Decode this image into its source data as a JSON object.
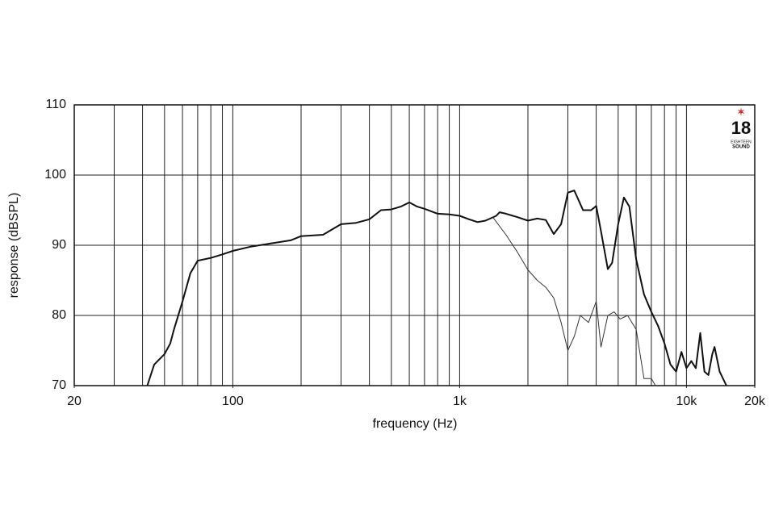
{
  "chart_data": {
    "type": "line",
    "x_label": "frequency (Hz)",
    "y_label": "response (dBSPL)",
    "xscale": "log",
    "xlim": [
      20,
      20000
    ],
    "ylim": [
      70,
      110
    ],
    "xticks": [
      20,
      100,
      {
        "value": 1000,
        "label": "1k"
      },
      {
        "value": 10000,
        "label": "10k"
      },
      {
        "value": 20000,
        "label": "20k"
      }
    ],
    "xgrid": [
      30,
      40,
      50,
      60,
      70,
      80,
      90,
      100,
      200,
      300,
      400,
      500,
      600,
      700,
      800,
      900,
      1000,
      2000,
      3000,
      4000,
      5000,
      6000,
      7000,
      8000,
      9000,
      10000
    ],
    "yticks": [
      70,
      80,
      90,
      100,
      110
    ],
    "grid": true,
    "series": [
      {
        "color": "#111111",
        "width": 2,
        "x": [
          42,
          45,
          50,
          53,
          55,
          60,
          65,
          70,
          80,
          90,
          100,
          120,
          150,
          180,
          200,
          250,
          300,
          350,
          400,
          450,
          500,
          550,
          600,
          650,
          700,
          800,
          900,
          1000,
          1100,
          1200,
          1300,
          1450,
          1500,
          1600,
          1800,
          2000,
          2200,
          2400,
          2600,
          2800,
          3000,
          3200,
          3500,
          3800,
          4000,
          4200,
          4500,
          4700,
          5000,
          5300,
          5600,
          6000,
          6500,
          7000,
          7500,
          8000,
          8500,
          9000,
          9500,
          10000,
          10500,
          11000,
          11500,
          12000,
          12500,
          13000,
          13300,
          14000,
          15000
        ],
        "values": [
          70,
          73,
          74.5,
          76,
          78,
          82,
          86,
          87.8,
          88.2,
          88.7,
          89.2,
          89.8,
          90.3,
          90.7,
          91.3,
          91.5,
          93,
          93.2,
          93.7,
          95,
          95.1,
          95.5,
          96.1,
          95.5,
          95.2,
          94.5,
          94.4,
          94.2,
          93.7,
          93.3,
          93.5,
          94.2,
          94.7,
          94.5,
          94,
          93.5,
          93.8,
          93.6,
          91.6,
          93,
          97.5,
          97.8,
          95,
          95,
          95.6,
          92,
          86.6,
          87.5,
          93,
          96.8,
          95.5,
          88,
          83,
          80.5,
          78.5,
          76,
          73,
          72,
          74.8,
          72.5,
          73.5,
          72.5,
          77.5,
          72,
          71.5,
          74.5,
          75.5,
          72,
          70
        ]
      },
      {
        "color": "#333333",
        "width": 1,
        "x": [
          1400,
          1600,
          1800,
          2000,
          2200,
          2400,
          2600,
          2800,
          3000,
          3200,
          3400,
          3700,
          4000,
          4200,
          4500,
          4800,
          5100,
          5500,
          6000,
          6500,
          7000,
          7300
        ],
        "values": [
          94,
          91.5,
          89,
          86.5,
          85,
          84,
          82.5,
          79,
          75,
          77,
          80,
          79,
          82,
          75.5,
          80,
          80.5,
          79.5,
          80,
          78,
          71,
          71,
          70
        ]
      }
    ],
    "logo": {
      "number": "18",
      "line1": "EIGHTEEN",
      "line2": "SOUND"
    }
  }
}
